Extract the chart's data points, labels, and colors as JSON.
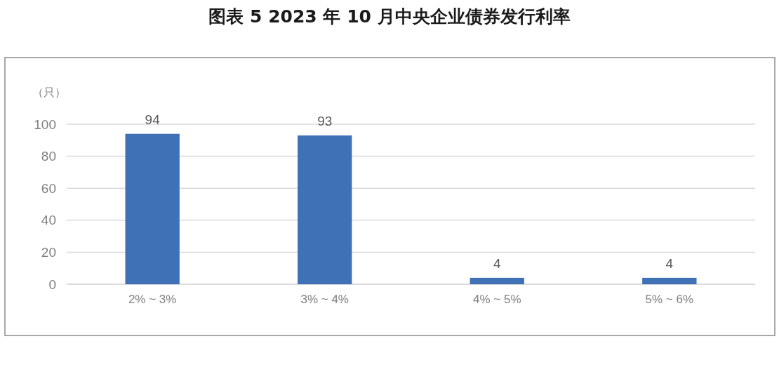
{
  "chart_data": {
    "type": "bar",
    "title": "图表 5  2023 年 10 月中央企业债券发行利率",
    "ylabel": "（只）",
    "categories": [
      "2% ~ 3%",
      "3% ~ 4%",
      "4% ~ 5%",
      "5% ~ 6%"
    ],
    "values": [
      94,
      93,
      4,
      4
    ],
    "color": "#3f71b7",
    "ylim": [
      0,
      100
    ],
    "yticks": [
      0,
      20,
      40,
      60,
      80,
      100
    ],
    "grid": "y",
    "data_labels": true
  }
}
